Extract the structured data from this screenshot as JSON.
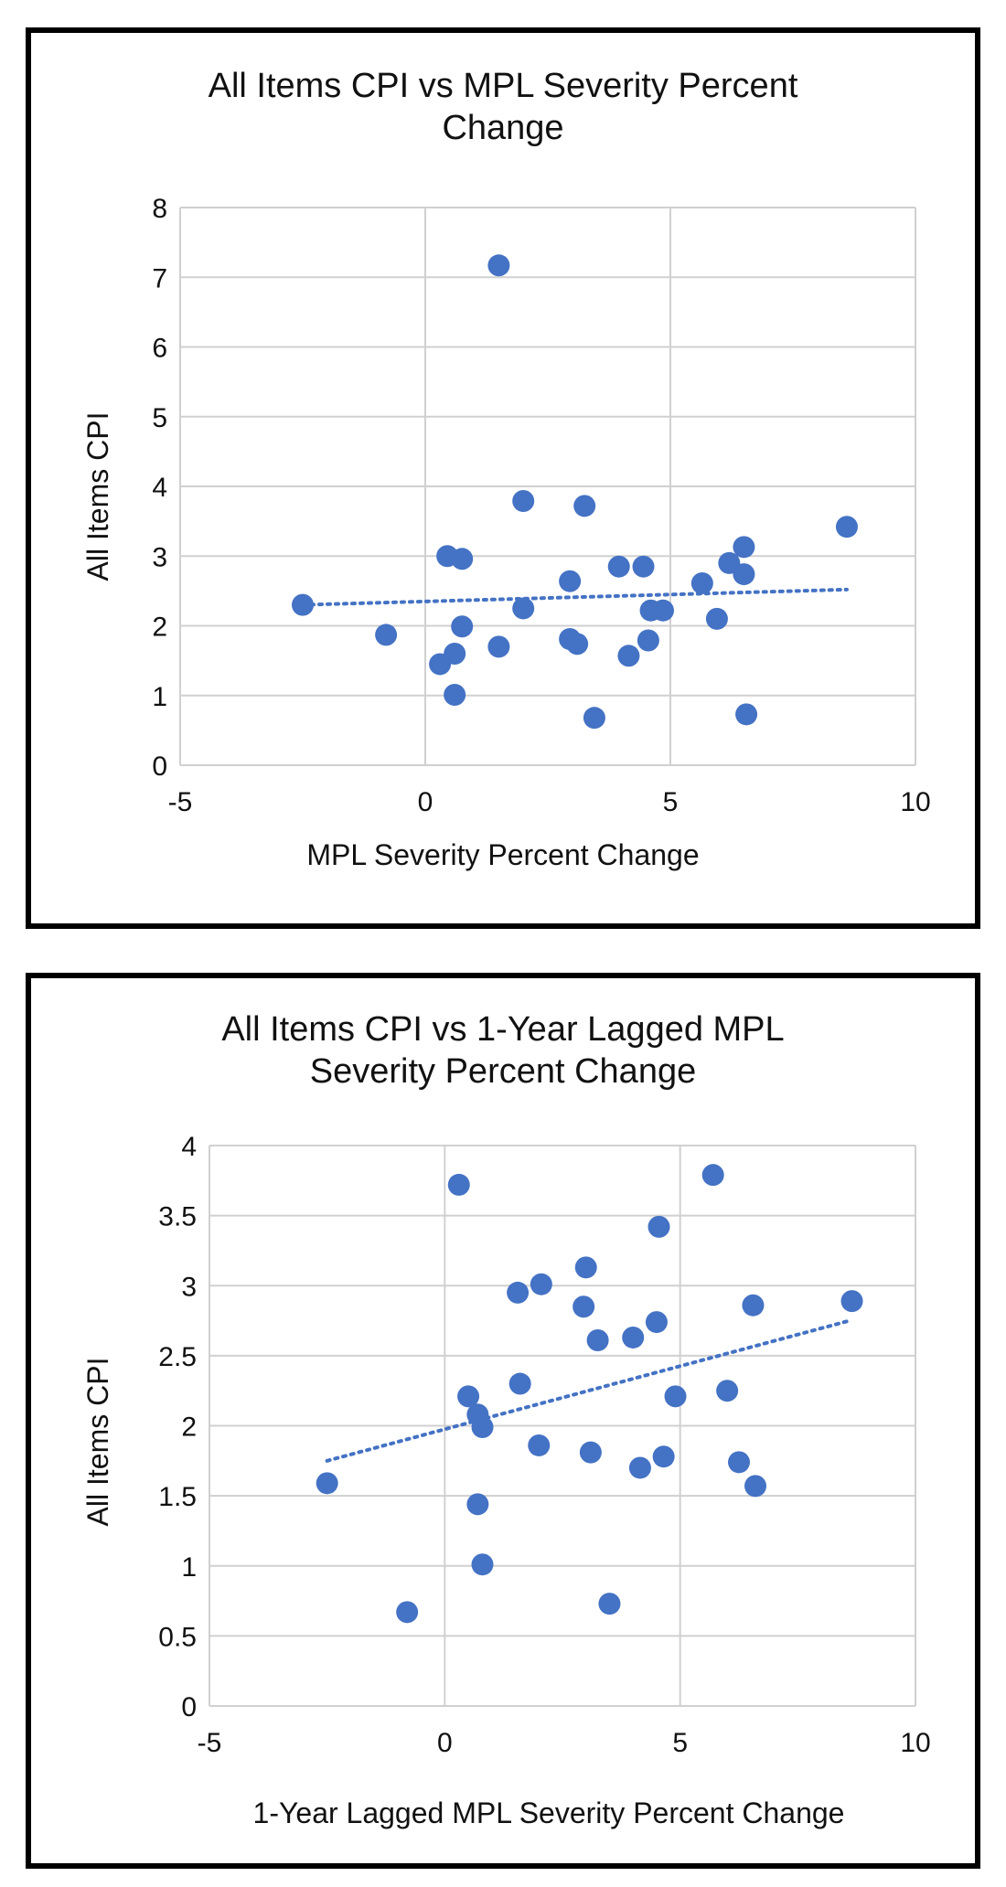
{
  "chart_data": [
    {
      "type": "scatter",
      "title_lines": [
        "All Items CPI vs MPL Severity Percent",
        "Change"
      ],
      "xlabel": "MPL Severity Percent Change",
      "ylabel": "All Items CPI",
      "xlim": [
        -5,
        10
      ],
      "ylim": [
        0,
        8
      ],
      "x_ticks": [
        -5,
        0,
        5,
        10
      ],
      "y_ticks": [
        0,
        1,
        2,
        3,
        4,
        5,
        6,
        7,
        8
      ],
      "grid": true,
      "trendline": {
        "style": "dotted",
        "x": [
          -2.5,
          8.6
        ],
        "y": [
          2.3,
          2.52
        ]
      },
      "points": [
        {
          "x": -2.5,
          "y": 2.3
        },
        {
          "x": -0.8,
          "y": 1.87
        },
        {
          "x": 0.3,
          "y": 1.45
        },
        {
          "x": 0.45,
          "y": 3.0
        },
        {
          "x": 0.6,
          "y": 1.6
        },
        {
          "x": 0.6,
          "y": 1.01
        },
        {
          "x": 0.75,
          "y": 2.96
        },
        {
          "x": 0.75,
          "y": 1.99
        },
        {
          "x": 1.5,
          "y": 7.17
        },
        {
          "x": 1.5,
          "y": 1.7
        },
        {
          "x": 2.0,
          "y": 3.79
        },
        {
          "x": 2.0,
          "y": 2.25
        },
        {
          "x": 2.95,
          "y": 2.64
        },
        {
          "x": 2.95,
          "y": 1.81
        },
        {
          "x": 3.1,
          "y": 1.74
        },
        {
          "x": 3.25,
          "y": 3.72
        },
        {
          "x": 3.45,
          "y": 0.68
        },
        {
          "x": 3.95,
          "y": 2.85
        },
        {
          "x": 4.15,
          "y": 1.57
        },
        {
          "x": 4.45,
          "y": 2.85
        },
        {
          "x": 4.55,
          "y": 1.79
        },
        {
          "x": 4.6,
          "y": 2.22
        },
        {
          "x": 4.85,
          "y": 2.22
        },
        {
          "x": 5.65,
          "y": 2.61
        },
        {
          "x": 5.95,
          "y": 2.1
        },
        {
          "x": 6.2,
          "y": 2.9
        },
        {
          "x": 6.5,
          "y": 3.13
        },
        {
          "x": 6.5,
          "y": 2.74
        },
        {
          "x": 6.55,
          "y": 0.73
        },
        {
          "x": 8.6,
          "y": 3.42
        }
      ]
    },
    {
      "type": "scatter",
      "title_lines": [
        "All Items CPI vs 1-Year Lagged MPL",
        "Severity Percent Change"
      ],
      "xlabel": "1-Year Lagged MPL Severity Percent Change",
      "ylabel": "All Items CPI",
      "xlim": [
        -5,
        10
      ],
      "ylim": [
        0,
        4
      ],
      "x_ticks": [
        -5,
        0,
        5,
        10
      ],
      "y_ticks": [
        0,
        0.5,
        1,
        1.5,
        2,
        2.5,
        3,
        3.5,
        4
      ],
      "grid": true,
      "trendline": {
        "style": "dotted",
        "x": [
          -2.5,
          8.6
        ],
        "y": [
          1.75,
          2.75
        ]
      },
      "points": [
        {
          "x": -2.5,
          "y": 1.59
        },
        {
          "x": -0.8,
          "y": 0.67
        },
        {
          "x": 0.3,
          "y": 3.72
        },
        {
          "x": 0.5,
          "y": 2.21
        },
        {
          "x": 0.7,
          "y": 2.08
        },
        {
          "x": 0.7,
          "y": 1.44
        },
        {
          "x": 0.8,
          "y": 1.99
        },
        {
          "x": 0.8,
          "y": 1.01
        },
        {
          "x": 1.55,
          "y": 2.95
        },
        {
          "x": 1.6,
          "y": 2.3
        },
        {
          "x": 2.0,
          "y": 1.86
        },
        {
          "x": 2.05,
          "y": 3.01
        },
        {
          "x": 2.95,
          "y": 2.85
        },
        {
          "x": 3.0,
          "y": 3.13
        },
        {
          "x": 3.1,
          "y": 1.81
        },
        {
          "x": 3.25,
          "y": 2.61
        },
        {
          "x": 3.5,
          "y": 0.73
        },
        {
          "x": 4.0,
          "y": 2.63
        },
        {
          "x": 4.15,
          "y": 1.7
        },
        {
          "x": 4.5,
          "y": 2.74
        },
        {
          "x": 4.55,
          "y": 3.42
        },
        {
          "x": 4.65,
          "y": 1.78
        },
        {
          "x": 4.9,
          "y": 2.21
        },
        {
          "x": 5.7,
          "y": 3.79
        },
        {
          "x": 6.0,
          "y": 2.25
        },
        {
          "x": 6.25,
          "y": 1.74
        },
        {
          "x": 6.55,
          "y": 2.86
        },
        {
          "x": 6.6,
          "y": 1.57
        },
        {
          "x": 8.65,
          "y": 2.89
        }
      ]
    }
  ]
}
